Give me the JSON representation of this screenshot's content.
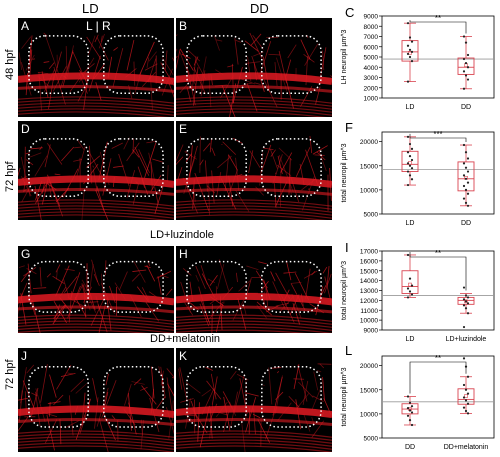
{
  "column_headers": [
    "LD",
    "DD"
  ],
  "lr_label": "L | R",
  "row_labels": {
    "r48": "48 hpf",
    "r72": "72 hpf",
    "r72b": "72 hpf"
  },
  "condition_labels": {
    "luz": "LD+luzindole",
    "mel": "DD+melatonin"
  },
  "panel_labels": {
    "A": "A",
    "B": "B",
    "C": "C",
    "D": "D",
    "E": "E",
    "F": "F",
    "G": "G",
    "H": "H",
    "I": "I",
    "J": "J",
    "K": "K",
    "L": "L"
  },
  "colors": {
    "box": "#d9434f",
    "point": "#222222",
    "mean_line": "#999999",
    "stain": "#e01a22",
    "outline": "#ffffff"
  },
  "chart_data": [
    {
      "id": "C",
      "type": "box",
      "ylabel": "LH neuropil µm^3",
      "categories": [
        "LD",
        "DD"
      ],
      "yticks": [
        1000,
        2000,
        3000,
        4000,
        5000,
        6000,
        7000,
        8000,
        9000
      ],
      "ylim": [
        1000,
        9000
      ],
      "reference_line": 4800,
      "significance": "**",
      "boxes": [
        {
          "category": "LD",
          "min": 2600,
          "q1": 4600,
          "median": 5500,
          "q3": 6600,
          "max": 8300,
          "mean": 5400
        },
        {
          "category": "DD",
          "min": 1900,
          "q1": 3300,
          "median": 4000,
          "q3": 4900,
          "max": 7000,
          "mean": 4200
        }
      ],
      "points": [
        {
          "category": "LD",
          "values": [
            8300,
            6900,
            6500,
            6100,
            5700,
            5500,
            5300,
            5000,
            4600,
            2600
          ]
        },
        {
          "category": "DD",
          "values": [
            7000,
            6400,
            5200,
            4800,
            4400,
            4000,
            3600,
            3200,
            2800,
            1900
          ]
        }
      ]
    },
    {
      "id": "F",
      "type": "box",
      "ylabel": "total neuropil µm^3",
      "categories": [
        "LD",
        "DD"
      ],
      "yticks": [
        5000,
        10000,
        15000,
        20000
      ],
      "ylim": [
        5000,
        22000
      ],
      "reference_line": 14200,
      "significance": "***",
      "boxes": [
        {
          "category": "LD",
          "min": 11000,
          "q1": 13800,
          "median": 15300,
          "q3": 18000,
          "max": 21000,
          "mean": 15600
        },
        {
          "category": "DD",
          "min": 6700,
          "q1": 9800,
          "median": 12300,
          "q3": 15800,
          "max": 19300,
          "mean": 12500
        }
      ],
      "points": [
        {
          "category": "LD",
          "values": [
            21000,
            19500,
            18500,
            17800,
            17000,
            16200,
            15500,
            15000,
            14500,
            13800,
            13000,
            12200,
            11000
          ]
        },
        {
          "category": "DD",
          "values": [
            19300,
            17800,
            16500,
            15500,
            14600,
            13800,
            13000,
            12300,
            11500,
            10800,
            10000,
            9200,
            8200,
            7300,
            6700
          ]
        }
      ]
    },
    {
      "id": "I",
      "type": "box",
      "ylabel": "total neuropil µm^3",
      "categories": [
        "LD",
        "LD+luzindole"
      ],
      "yticks": [
        9000,
        10000,
        11000,
        12000,
        13000,
        14000,
        15000,
        16000,
        17000
      ],
      "ylim": [
        9000,
        17000
      ],
      "reference_line": 12500,
      "significance": "**",
      "boxes": [
        {
          "category": "LD",
          "min": 12300,
          "q1": 12700,
          "median": 13400,
          "q3": 15000,
          "max": 16600,
          "mean": 13600
        },
        {
          "category": "LD+luzindole",
          "min": 10700,
          "q1": 11600,
          "median": 12000,
          "q3": 12300,
          "max": 12700,
          "mean": 11900
        }
      ],
      "points": [
        {
          "category": "LD",
          "values": [
            16600,
            14200,
            13500,
            13200,
            12900,
            12600,
            12300
          ]
        },
        {
          "category": "LD+luzindole",
          "values": [
            13300,
            12500,
            12300,
            12100,
            11900,
            11700,
            11500,
            11200,
            10700,
            9300
          ]
        }
      ]
    },
    {
      "id": "L",
      "type": "box",
      "ylabel": "total neuropil µm^3",
      "categories": [
        "DD",
        "DD+melatonin"
      ],
      "yticks": [
        5000,
        10000,
        15000,
        20000
      ],
      "ylim": [
        5000,
        22000
      ],
      "reference_line": 12500,
      "significance": "**",
      "boxes": [
        {
          "category": "DD",
          "min": 7700,
          "q1": 10000,
          "median": 11000,
          "q3": 12100,
          "max": 13600,
          "mean": 11000
        },
        {
          "category": "DD+melatonin",
          "min": 10100,
          "q1": 12000,
          "median": 13000,
          "q3": 15200,
          "max": 17700,
          "mean": 13700
        }
      ],
      "points": [
        {
          "category": "DD",
          "values": [
            13600,
            12300,
            11600,
            11200,
            10700,
            10300,
            9600,
            8700,
            7700
          ]
        },
        {
          "category": "DD+melatonin",
          "values": [
            21500,
            19800,
            17700,
            16000,
            15000,
            14200,
            13400,
            12800,
            12100,
            11300,
            10600,
            10100
          ]
        }
      ]
    }
  ]
}
